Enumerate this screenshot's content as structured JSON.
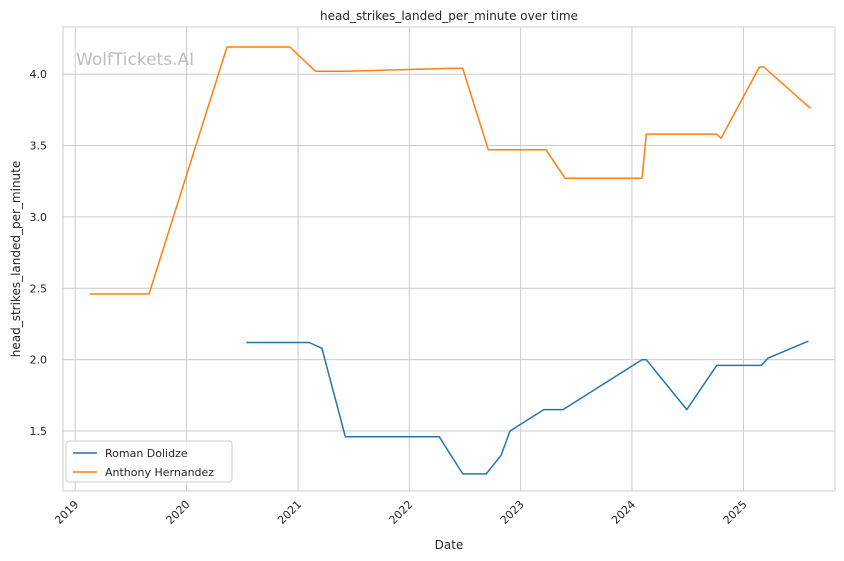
{
  "chart_data": {
    "type": "line",
    "title": "head_strikes_landed_per_minute over time",
    "xlabel": "Date",
    "ylabel": "head_strikes_landed_per_minute",
    "watermark": "WolfTickets.AI",
    "x_ticks": [
      "2019",
      "2020",
      "2021",
      "2022",
      "2023",
      "2024",
      "2025"
    ],
    "y_ticks": [
      "1.5",
      "2.0",
      "2.5",
      "3.0",
      "3.5",
      "4.0"
    ],
    "xlim": [
      "2018-11-22",
      "2025-10-28"
    ],
    "ylim": [
      1.08,
      4.33
    ],
    "grid": true,
    "legend_position": "lower-left",
    "series": [
      {
        "name": "Roman Dolidze",
        "color": "#1f77b4",
        "points": [
          [
            "2020-07-15",
            2.12
          ],
          [
            "2021-02-06",
            2.12
          ],
          [
            "2021-03-20",
            2.08
          ],
          [
            "2021-06-05",
            1.46
          ],
          [
            "2022-04-09",
            1.46
          ],
          [
            "2022-06-25",
            1.2
          ],
          [
            "2022-09-10",
            1.2
          ],
          [
            "2022-10-29",
            1.33
          ],
          [
            "2022-11-27",
            1.5
          ],
          [
            "2023-03-18",
            1.65
          ],
          [
            "2023-05-20",
            1.65
          ],
          [
            "2024-02-03",
            2.0
          ],
          [
            "2024-02-17",
            2.0
          ],
          [
            "2024-06-29",
            1.65
          ],
          [
            "2024-10-05",
            1.96
          ],
          [
            "2025-03-01",
            1.96
          ],
          [
            "2025-03-22",
            2.01
          ],
          [
            "2025-08-02",
            2.13
          ]
        ]
      },
      {
        "name": "Anthony Hernandez",
        "color": "#ff7f0e",
        "points": [
          [
            "2019-02-17",
            2.46
          ],
          [
            "2019-08-31",
            2.46
          ],
          [
            "2020-05-13",
            4.19
          ],
          [
            "2020-12-05",
            4.19
          ],
          [
            "2021-02-27",
            4.02
          ],
          [
            "2021-06-05",
            4.02
          ],
          [
            "2022-05-14",
            4.04
          ],
          [
            "2022-06-25",
            4.04
          ],
          [
            "2022-09-17",
            3.47
          ],
          [
            "2023-03-25",
            3.47
          ],
          [
            "2023-05-27",
            3.27
          ],
          [
            "2024-02-03",
            3.27
          ],
          [
            "2024-02-17",
            3.58
          ],
          [
            "2024-10-05",
            3.58
          ],
          [
            "2024-10-19",
            3.55
          ],
          [
            "2025-02-22",
            4.05
          ],
          [
            "2025-03-08",
            4.05
          ],
          [
            "2025-08-09",
            3.76
          ]
        ]
      }
    ]
  }
}
